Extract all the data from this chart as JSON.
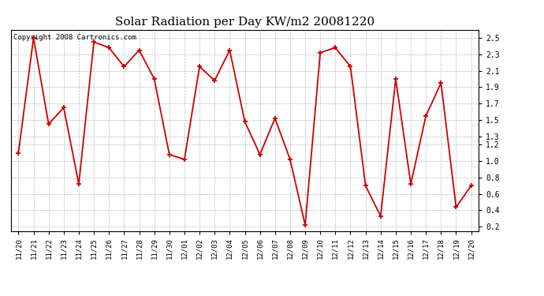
{
  "title": "Solar Radiation per Day KW/m2 20081220",
  "copyright_text": "Copyright 2008 Cartronics.com",
  "labels": [
    "11/20",
    "11/21",
    "11/22",
    "11/23",
    "11/24",
    "11/25",
    "11/26",
    "11/27",
    "11/28",
    "11/29",
    "11/30",
    "12/01",
    "12/02",
    "12/03",
    "12/04",
    "12/05",
    "12/06",
    "12/07",
    "12/08",
    "12/09",
    "12/10",
    "12/11",
    "12/12",
    "12/13",
    "12/14",
    "12/15",
    "12/16",
    "12/17",
    "12/18",
    "12/19",
    "12/20"
  ],
  "values": [
    1.1,
    2.5,
    1.45,
    1.65,
    0.72,
    2.45,
    2.38,
    2.15,
    2.35,
    2.0,
    1.08,
    1.02,
    2.15,
    1.98,
    2.35,
    1.48,
    1.08,
    1.52,
    1.02,
    0.22,
    2.32,
    2.38,
    2.15,
    0.7,
    0.33,
    2.0,
    0.72,
    1.55,
    1.95,
    0.44,
    0.7
  ],
  "line_color": "#cc0000",
  "marker_color": "#cc0000",
  "bg_color": "#ffffff",
  "grid_color": "#bbbbbb",
  "ylim": [
    0.15,
    2.6
  ],
  "yticks": [
    0.2,
    0.4,
    0.6,
    0.8,
    1.0,
    1.2,
    1.3,
    1.5,
    1.7,
    1.9,
    2.1,
    2.3,
    2.5
  ],
  "title_fontsize": 11,
  "copyright_fontsize": 6.5,
  "tick_fontsize": 6.5,
  "ytick_fontsize": 7
}
